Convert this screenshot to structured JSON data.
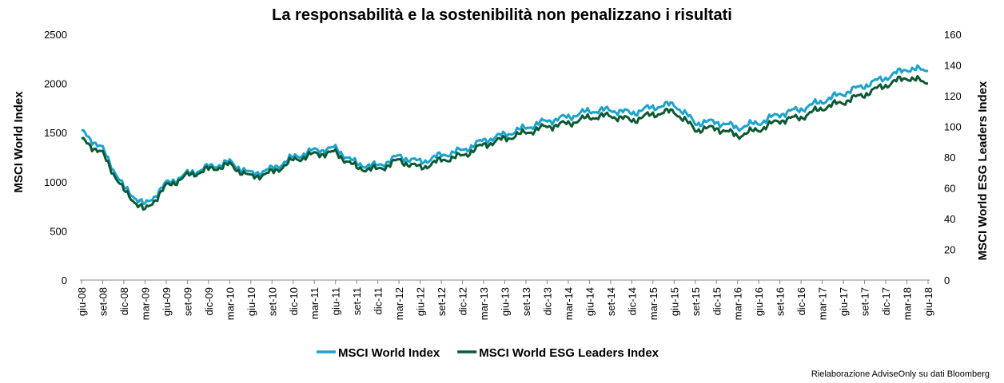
{
  "chart_data": {
    "type": "line",
    "title": "La responsabilità e la sostenibilità non penalizzano i risultati",
    "ylabel": "MSCI World Index",
    "y2label": "MSCI World ESG Leaders Index",
    "ylim": [
      0,
      2500
    ],
    "y2lim": [
      0,
      160
    ],
    "yticks": [
      "0",
      "500",
      "1000",
      "1500",
      "2000",
      "2500"
    ],
    "y2ticks": [
      "0",
      "20",
      "40",
      "60",
      "80",
      "100",
      "120",
      "140",
      "160"
    ],
    "grid": false,
    "legend_position": "bottom",
    "categories": [
      "giu-08",
      "set-08",
      "dic-08",
      "mar-09",
      "giu-09",
      "set-09",
      "dic-09",
      "mar-10",
      "giu-10",
      "set-10",
      "dic-10",
      "mar-11",
      "giu-11",
      "set-11",
      "dic-11",
      "mar-12",
      "giu-12",
      "set-12",
      "dic-12",
      "mar-13",
      "giu-13",
      "set-13",
      "dic-13",
      "mar-14",
      "giu-14",
      "set-14",
      "dic-14",
      "mar-15",
      "giu-15",
      "set-15",
      "dic-15",
      "mar-16",
      "giu-16",
      "set-16",
      "dic-16",
      "mar-17",
      "giu-17",
      "set-17",
      "dic-17",
      "mar-18",
      "giu-18"
    ],
    "series": [
      {
        "name": "MSCI World Index",
        "axis": "left",
        "color": "#1aa3cc",
        "values": [
          1520,
          1330,
          940,
          760,
          980,
          1080,
          1150,
          1200,
          1080,
          1130,
          1250,
          1320,
          1340,
          1180,
          1160,
          1260,
          1200,
          1270,
          1320,
          1420,
          1480,
          1550,
          1620,
          1660,
          1720,
          1730,
          1700,
          1760,
          1790,
          1600,
          1610,
          1550,
          1600,
          1690,
          1740,
          1820,
          1900,
          1980,
          2060,
          2150,
          2130
        ]
      },
      {
        "name": "MSCI World ESG Leaders Index",
        "axis": "right",
        "color": "#0b5a34",
        "values": [
          92,
          82,
          58,
          45,
          61,
          68,
          72,
          75,
          67,
          70,
          78,
          82,
          83,
          73,
          72,
          78,
          73,
          78,
          81,
          88,
          92,
          96,
          100,
          102,
          106,
          107,
          104,
          108,
          110,
          98,
          99,
          94,
          98,
          104,
          106,
          112,
          116,
          121,
          127,
          132,
          128
        ]
      }
    ],
    "source": "Rielaborazione AdviseOnly su dati Bloomberg"
  }
}
